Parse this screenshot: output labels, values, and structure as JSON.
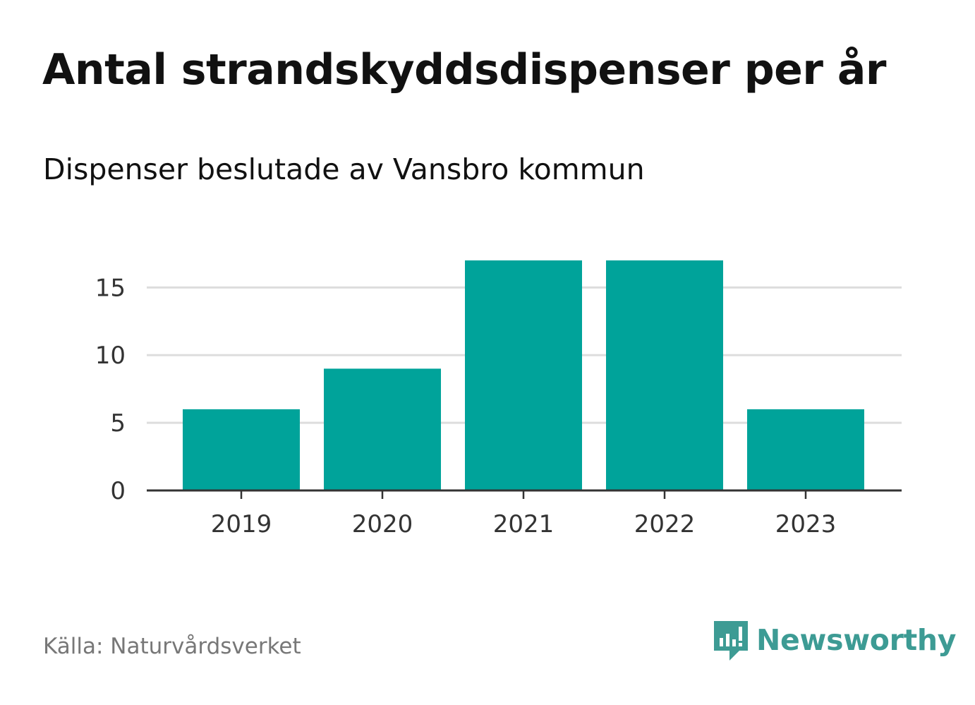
{
  "colors": {
    "bar": "#00a39a",
    "grid": "#dddddd",
    "axis": "#333333",
    "brand": "#3d9b94",
    "source": "#777777"
  },
  "chart_data": {
    "type": "bar",
    "title": "Antal strandskyddsdispenser per år",
    "subtitle": "Dispenser beslutade av Vansbro kommun",
    "xlabel": "",
    "ylabel": "",
    "categories": [
      "2019",
      "2020",
      "2021",
      "2022",
      "2023"
    ],
    "values": [
      6,
      9,
      17,
      17,
      6
    ],
    "ylim": [
      0,
      17
    ],
    "yticks": [
      0,
      5,
      10,
      15
    ],
    "grid": true,
    "legend": "none"
  },
  "footer": {
    "source": "Källa: Naturvårdsverket",
    "brand": "Newsworthy",
    "brand_icon": "newsworthy-logo-icon"
  }
}
